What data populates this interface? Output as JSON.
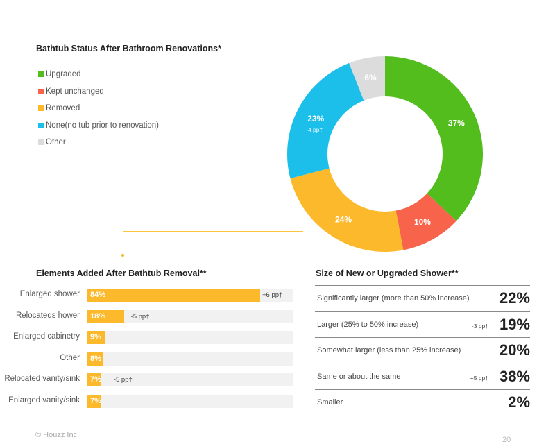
{
  "chart_data": [
    {
      "type": "pie",
      "title": "Bathtub Status After Bathroom Renovations*",
      "categories": [
        "Upgraded",
        "Kept unchanged",
        "Removed",
        "None (no tub prior to renovation)",
        "Other"
      ],
      "legend_labels": [
        "Upgraded",
        "Kept unchanged",
        "Removed",
        "None(no tub prior to renovation)",
        "Other"
      ],
      "values": [
        37,
        10,
        24,
        23,
        6
      ],
      "data_labels": [
        "37%",
        "10%",
        "24%",
        "23%",
        "6%"
      ],
      "colors": [
        "#52bd1c",
        "#f8634b",
        "#fdb92c",
        "#1bbfea",
        "#dcdcdc"
      ],
      "annotations": [
        {
          "category": "None (no tub prior to renovation)",
          "text": "-4 pp†"
        }
      ],
      "legend_position": "left"
    },
    {
      "type": "bar",
      "orientation": "horizontal",
      "title": "Elements Added After Bathtub Removal**",
      "categories": [
        "Enlarged shower",
        "Relocated shower",
        "Enlarged cabinetry",
        "Other",
        "Relocated vanity/sink",
        "Enlarged vanity/sink"
      ],
      "display_labels": [
        "Enlarged shower",
        "Relocateds hower",
        "Enlarged cabinetry",
        "Other",
        "Relocated vanity/sink",
        "Enlarged vanity/sink"
      ],
      "values": [
        84,
        18,
        9,
        8,
        7,
        7
      ],
      "data_labels": [
        "84%",
        "18%",
        "9%",
        "8%",
        "7%",
        "7%"
      ],
      "notes": [
        "+6 pp†",
        "-5 pp†",
        "",
        "",
        "-5 pp†",
        ""
      ],
      "xlim": [
        0,
        100
      ],
      "color": "#fdb92c",
      "track_color": "#f1f1f1"
    },
    {
      "type": "table",
      "title": "Size of New or Upgraded Shower**",
      "rows": [
        {
          "label": "Significantly larger (more than 50% increase)",
          "value": "22%",
          "note": ""
        },
        {
          "label": "Larger (25% to 50% increase)",
          "value": "19%",
          "note": "-3 pp†"
        },
        {
          "label": "Somewhat larger (less than 25% increase)",
          "value": "20%",
          "note": ""
        },
        {
          "label": "Same or about the same",
          "value": "38%",
          "note": "+5 pp†"
        },
        {
          "label": "Smaller",
          "value": "2%",
          "note": ""
        }
      ]
    }
  ],
  "footer": {
    "copyright": "© Houzz Inc.",
    "page": "20"
  }
}
